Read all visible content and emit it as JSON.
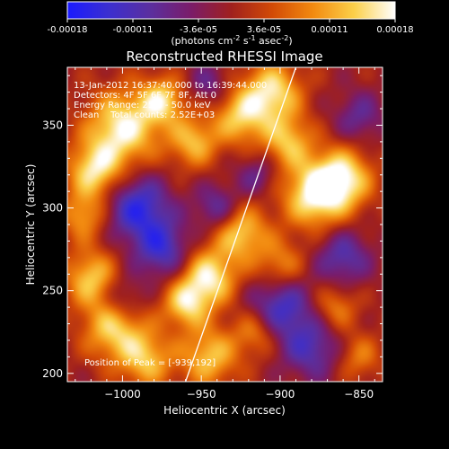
{
  "colorbar": {
    "ticks": [
      "-0.00018",
      "-0.00011",
      "-3.6e-05",
      "3.6e-05",
      "0.00011",
      "0.00018"
    ],
    "units_prefix": "(photons cm",
    "units_sup1": "-2",
    "units_mid": " s",
    "units_sup2": "-1",
    "units_mid2": " asec",
    "units_sup3": "-2",
    "units_suffix": ")",
    "colors": [
      "#1a1aff",
      "#3b2fd0",
      "#5a2fa0",
      "#7a1c6a",
      "#a0201e",
      "#d24a06",
      "#f28a10",
      "#fbd04a",
      "#ffffff"
    ]
  },
  "chart_data": {
    "type": "heatmap",
    "title": "Reconstructed RHESSI Image",
    "xlabel": "Heliocentric X (arcsec)",
    "ylabel": "Heliocentric Y (arcsec)",
    "xlim": [
      -1035,
      -835
    ],
    "ylim": [
      195,
      385
    ],
    "xticks": [
      -1000,
      -950,
      -900,
      -850
    ],
    "yticks": [
      200,
      250,
      300,
      350
    ],
    "xtick_labels": [
      "−1000",
      "−950",
      "−900",
      "−850"
    ],
    "ytick_labels": [
      "200",
      "250",
      "300",
      "350"
    ],
    "vmin": -0.00018,
    "vmax": 0.00018,
    "info_lines": [
      "13-Jan-2012 16:37:40.000 to 16:39:44.000",
      "Detectors: 4F 5F 6F 7F 8F, Att 0",
      "Energy Range: 25.0 - 50.0 keV",
      "Clean    Total counts: 2.52E+03"
    ],
    "peak_label": "Position of Peak = [-939,192]",
    "peak": [
      -939,
      192
    ],
    "limb_line": [
      [
        -960,
        195
      ],
      [
        -890,
        385
      ]
    ],
    "sources": [
      {
        "x": -1000,
        "y": 348,
        "a": 1.0,
        "s": 16
      },
      {
        "x": -1018,
        "y": 322,
        "a": 0.85,
        "s": 12
      },
      {
        "x": -975,
        "y": 365,
        "a": 0.8,
        "s": 10
      },
      {
        "x": -955,
        "y": 340,
        "a": 0.7,
        "s": 11
      },
      {
        "x": -925,
        "y": 355,
        "a": 0.75,
        "s": 12
      },
      {
        "x": -905,
        "y": 370,
        "a": 0.9,
        "s": 13
      },
      {
        "x": -895,
        "y": 340,
        "a": 0.7,
        "s": 11
      },
      {
        "x": -878,
        "y": 308,
        "a": 1.0,
        "s": 14
      },
      {
        "x": -860,
        "y": 318,
        "a": 0.9,
        "s": 13
      },
      {
        "x": -925,
        "y": 285,
        "a": 0.8,
        "s": 12
      },
      {
        "x": -945,
        "y": 258,
        "a": 0.95,
        "s": 12
      },
      {
        "x": -960,
        "y": 242,
        "a": 0.8,
        "s": 10
      },
      {
        "x": -1020,
        "y": 258,
        "a": 0.75,
        "s": 12
      },
      {
        "x": -1005,
        "y": 228,
        "a": 0.85,
        "s": 14
      },
      {
        "x": -985,
        "y": 208,
        "a": 0.7,
        "s": 12
      },
      {
        "x": -945,
        "y": 210,
        "a": 0.75,
        "s": 13
      },
      {
        "x": -915,
        "y": 225,
        "a": 0.55,
        "s": 10
      },
      {
        "x": -865,
        "y": 240,
        "a": 0.5,
        "s": 10
      },
      {
        "x": -850,
        "y": 210,
        "a": 0.45,
        "s": 10
      },
      {
        "x": -1025,
        "y": 295,
        "a": 0.6,
        "s": 10
      },
      {
        "x": -900,
        "y": 265,
        "a": 0.55,
        "s": 11
      },
      {
        "x": -990,
        "y": 300,
        "a": -0.85,
        "s": 14
      },
      {
        "x": -975,
        "y": 275,
        "a": -0.7,
        "s": 12
      },
      {
        "x": -900,
        "y": 240,
        "a": -0.75,
        "s": 14
      },
      {
        "x": -860,
        "y": 270,
        "a": -0.6,
        "s": 12
      },
      {
        "x": -880,
        "y": 215,
        "a": -0.6,
        "s": 13
      },
      {
        "x": -1000,
        "y": 245,
        "a": -0.5,
        "s": 10
      },
      {
        "x": -940,
        "y": 300,
        "a": -0.55,
        "s": 10
      },
      {
        "x": -945,
        "y": 375,
        "a": -0.4,
        "s": 9
      },
      {
        "x": -850,
        "y": 355,
        "a": -0.45,
        "s": 11
      },
      {
        "x": -915,
        "y": 320,
        "a": -0.4,
        "s": 9
      }
    ]
  }
}
